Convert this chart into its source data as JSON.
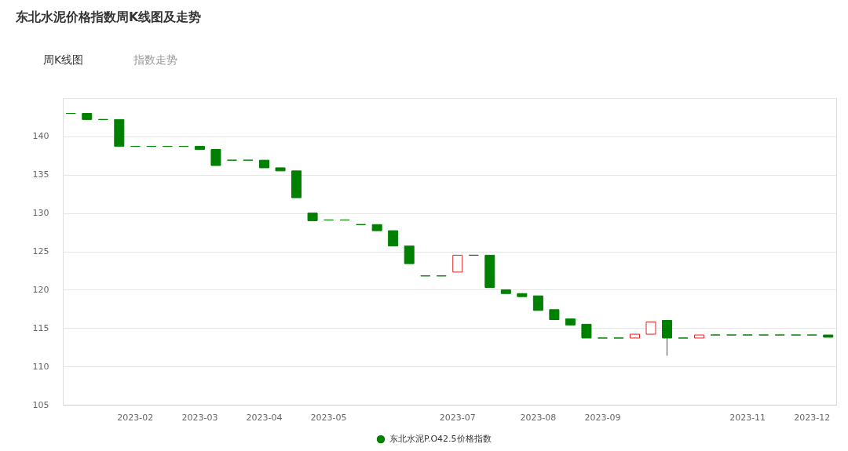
{
  "chart_data": {
    "type": "candlestick",
    "title": "东北水泥价格指数周K线图及走势",
    "annotations": [
      "周K线图",
      "指数走势"
    ],
    "categories": [
      null,
      null,
      null,
      null,
      "2023-02",
      null,
      null,
      null,
      "2023-03",
      null,
      null,
      null,
      "2023-04",
      null,
      null,
      null,
      "2023-05",
      null,
      null,
      null,
      null,
      null,
      null,
      null,
      "2023-07",
      null,
      null,
      null,
      null,
      "2023-08",
      null,
      null,
      null,
      "2023-09",
      null,
      null,
      null,
      null,
      null,
      null,
      null,
      null,
      "2023-11",
      null,
      null,
      null,
      "2023-12",
      null
    ],
    "ylim": [
      105,
      145
    ],
    "yticks": [
      105,
      110,
      115,
      120,
      125,
      130,
      135,
      140,
      {
        "value": 145,
        "label": null
      }
    ],
    "grid": "y",
    "legend": "bottom",
    "series": [
      {
        "name": "东北水泥P.O42.5价格指数",
        "color": "#008000",
        "ohlc": [
          [
            143.0,
            143.0,
            143.0,
            143.0
          ],
          [
            143.0,
            143.0,
            142.2,
            142.2
          ],
          [
            142.2,
            142.2,
            142.2,
            142.2
          ],
          [
            142.2,
            142.2,
            138.7,
            138.7
          ],
          [
            138.7,
            138.7,
            138.7,
            138.7
          ],
          [
            138.7,
            138.7,
            138.7,
            138.7
          ],
          [
            138.7,
            138.7,
            138.7,
            138.7
          ],
          [
            138.7,
            138.7,
            138.7,
            138.7
          ],
          [
            138.7,
            138.7,
            138.3,
            138.3
          ],
          [
            138.3,
            138.3,
            136.2,
            136.2
          ],
          [
            136.9,
            136.9,
            136.9,
            136.9
          ],
          [
            136.9,
            136.9,
            136.9,
            136.9
          ],
          [
            136.9,
            136.9,
            135.9,
            135.9
          ],
          [
            135.9,
            135.9,
            135.5,
            135.5
          ],
          [
            135.5,
            135.5,
            132.0,
            132.0
          ],
          [
            130.0,
            130.0,
            129.0,
            129.0
          ],
          [
            129.1,
            129.1,
            129.1,
            129.1
          ],
          [
            129.1,
            129.1,
            129.1,
            129.1
          ],
          [
            128.5,
            128.5,
            128.5,
            128.5
          ],
          [
            128.5,
            128.5,
            127.7,
            127.7
          ],
          [
            127.7,
            127.7,
            125.7,
            125.7
          ],
          [
            125.7,
            125.7,
            123.4,
            123.4
          ],
          [
            121.8,
            121.8,
            121.8,
            121.8
          ],
          [
            121.8,
            121.8,
            121.8,
            121.8
          ],
          [
            122.3,
            124.5,
            122.3,
            124.5
          ],
          [
            124.5,
            124.5,
            124.5,
            124.5
          ],
          [
            124.5,
            124.5,
            120.3,
            120.3
          ],
          [
            120.0,
            120.0,
            119.5,
            119.5
          ],
          [
            119.5,
            119.5,
            119.1,
            119.1
          ],
          [
            119.2,
            119.2,
            117.3,
            117.3
          ],
          [
            117.4,
            117.4,
            116.1,
            116.1
          ],
          [
            116.2,
            116.2,
            115.4,
            115.4
          ],
          [
            115.5,
            115.5,
            113.7,
            113.7
          ],
          [
            113.7,
            113.7,
            113.7,
            113.7
          ],
          [
            113.7,
            113.7,
            113.7,
            113.7
          ],
          [
            113.7,
            114.2,
            113.7,
            114.2
          ],
          [
            114.2,
            115.8,
            114.2,
            115.8
          ],
          [
            116.0,
            116.0,
            111.4,
            113.7
          ],
          [
            113.7,
            113.7,
            113.7,
            113.7
          ],
          [
            113.7,
            114.1,
            113.7,
            114.1
          ],
          [
            114.1,
            114.1,
            114.1,
            114.1
          ],
          [
            114.1,
            114.1,
            114.1,
            114.1
          ],
          [
            114.1,
            114.1,
            114.1,
            114.1
          ],
          [
            114.1,
            114.1,
            114.1,
            114.1
          ],
          [
            114.1,
            114.1,
            114.1,
            114.1
          ],
          [
            114.1,
            114.1,
            114.1,
            114.1
          ],
          [
            114.1,
            114.1,
            114.1,
            114.1
          ],
          [
            114.1,
            114.1,
            113.8,
            113.8
          ]
        ],
        "colors": [
          "#008000",
          "#008000",
          "#008000",
          "#008000",
          "#008000",
          "#008000",
          "#008000",
          "#008000",
          "#008000",
          "#008000",
          "#008000",
          "#008000",
          "#008000",
          "#008000",
          "#008000",
          "#008000",
          "#008000",
          "#008000",
          "#008000",
          "#008000",
          "#008000",
          "#008000",
          "#008000",
          "#008000",
          "#e02020",
          "#008000",
          "#008000",
          "#008000",
          "#008000",
          "#008000",
          "#008000",
          "#008000",
          "#008000",
          "#008000",
          "#008000",
          "#e02020",
          "#e02020",
          "#008000",
          "#008000",
          "#e02020",
          "#008000",
          "#008000",
          "#008000",
          "#008000",
          "#008000",
          "#008000",
          "#008000",
          "#008000"
        ]
      }
    ]
  }
}
